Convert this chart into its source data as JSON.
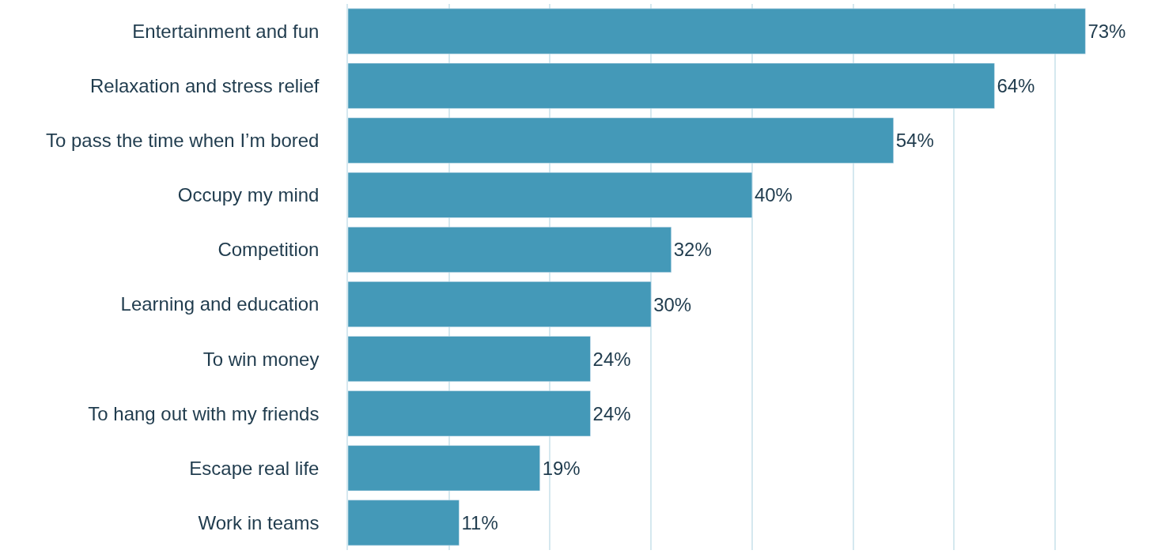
{
  "chart_data": {
    "type": "bar",
    "orientation": "horizontal",
    "categories": [
      "Entertainment and fun",
      "Relaxation and stress relief",
      "To pass the time when I’m bored",
      "Occupy my mind",
      "Competition",
      "Learning and education",
      "To win money",
      "To hang out with my friends",
      "Escape real life",
      "Work in teams"
    ],
    "values": [
      73,
      64,
      54,
      40,
      32,
      30,
      24,
      24,
      19,
      11
    ],
    "value_labels": [
      "73%",
      "64%",
      "54%",
      "40%",
      "32%",
      "30%",
      "24%",
      "24%",
      "19%",
      "11%"
    ],
    "color": "#4499b8",
    "xlim": [
      0,
      79
    ],
    "xticks": [
      {
        "value": 0,
        "label": null
      },
      {
        "value": 10,
        "label": null
      },
      {
        "value": 20,
        "label": null
      },
      {
        "value": 30,
        "label": null
      },
      {
        "value": 40,
        "label": null
      },
      {
        "value": 50,
        "label": null
      },
      {
        "value": 60,
        "label": null
      },
      {
        "value": 70,
        "label": null
      }
    ],
    "grid": "x",
    "tick_labels": "y"
  }
}
